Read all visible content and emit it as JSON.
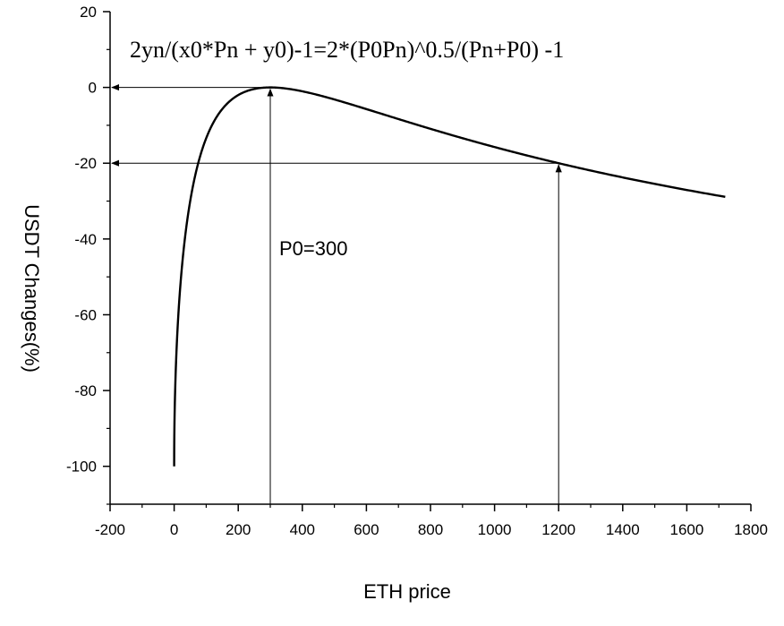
{
  "chart_data": {
    "type": "line",
    "title": "",
    "formula": "2yn/(x0*Pn + y0)-1=2*(P0Pn)^0.5/(Pn+P0) -1",
    "xlabel": "ETH price",
    "ylabel": "USDT Changes(%)",
    "xlim": [
      -200,
      1800
    ],
    "ylim": [
      -110,
      20
    ],
    "x_ticks": [
      -200,
      0,
      200,
      400,
      600,
      800,
      1000,
      1200,
      1400,
      1600,
      1800
    ],
    "y_ticks": [
      20,
      0,
      -20,
      -40,
      -60,
      -80,
      -100
    ],
    "P0": 300,
    "annotation": "P0=300",
    "curve_x_range": [
      0,
      1720
    ],
    "markers": [
      {
        "x": 300,
        "y": 0
      },
      {
        "x": 1200,
        "y": -20
      }
    ],
    "grid": false,
    "legend": "none"
  }
}
